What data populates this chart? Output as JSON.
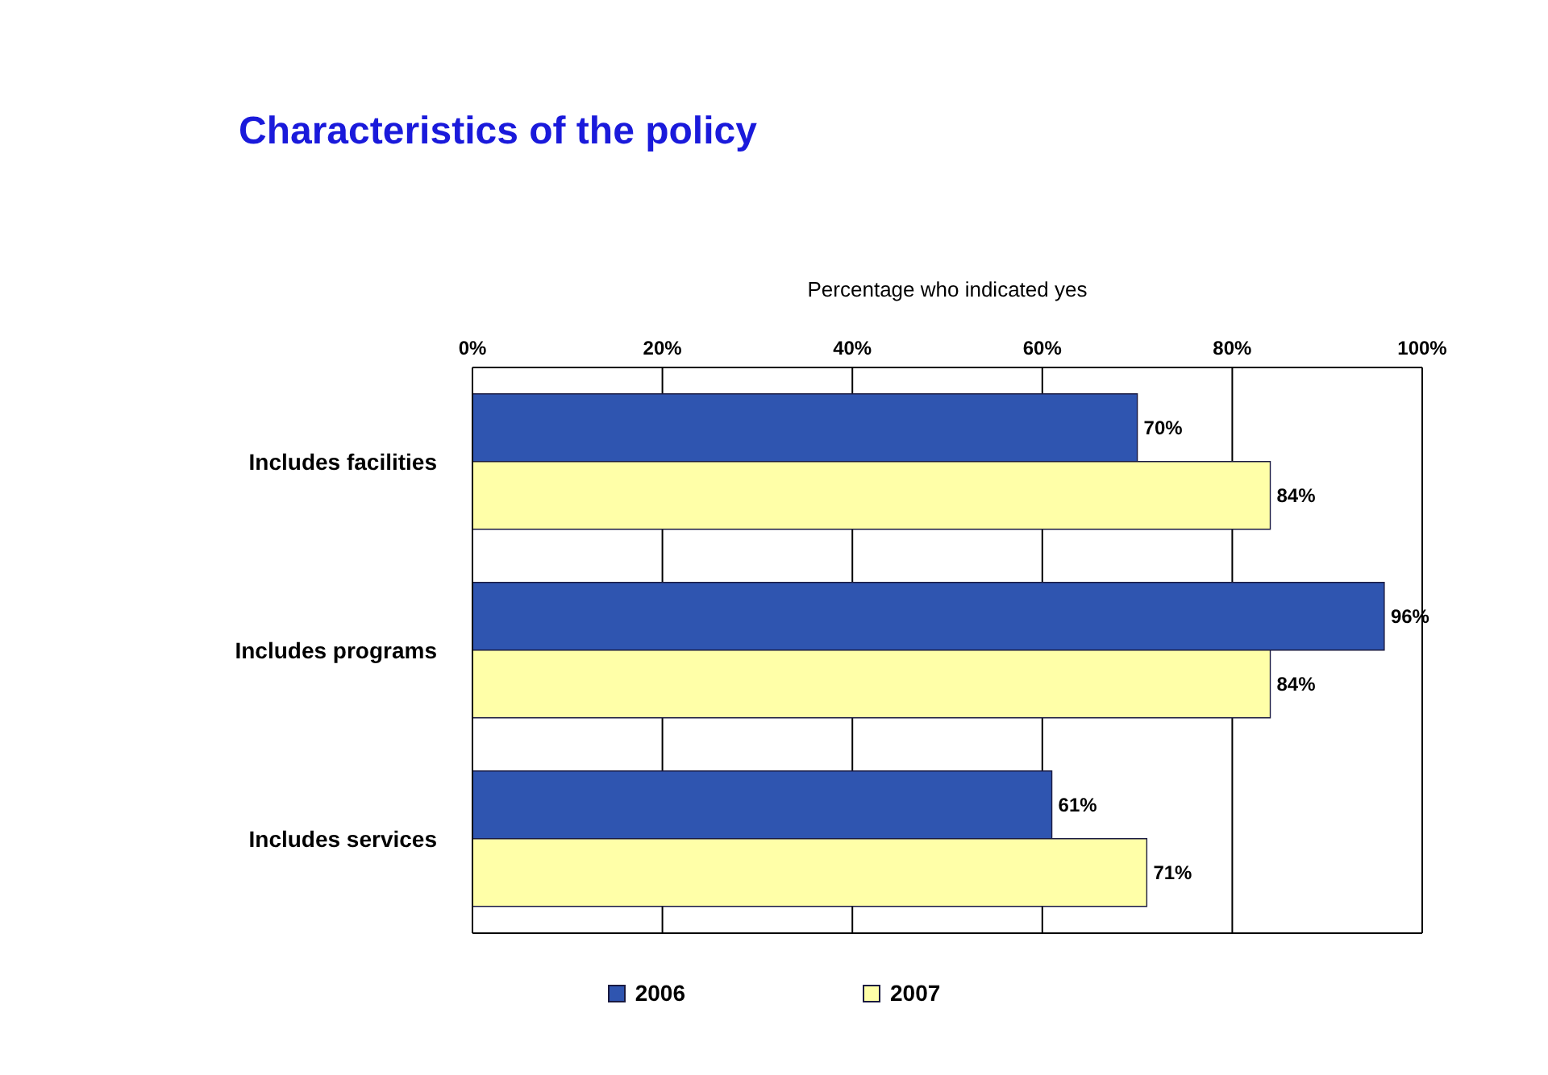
{
  "chart_data": {
    "type": "bar",
    "orientation": "horizontal",
    "title": "Characteristics of the policy",
    "xlabel": "Percentage who indicated yes",
    "categories": [
      "Includes facilities",
      "Includes programs",
      "Includes services"
    ],
    "series": [
      {
        "name": "2006",
        "color": "#2f55b0",
        "values": [
          70,
          96,
          61
        ],
        "value_labels": [
          "70%",
          "96%",
          "61%"
        ]
      },
      {
        "name": "2007",
        "color": "#ffffa8",
        "values": [
          84,
          84,
          71
        ],
        "value_labels": [
          "84%",
          "84%",
          "71%"
        ]
      }
    ],
    "xlim": [
      0,
      100
    ],
    "xticks": [
      {
        "value": 0,
        "label": "0%"
      },
      {
        "value": 20,
        "label": "20%"
      },
      {
        "value": 40,
        "label": "40%"
      },
      {
        "value": 60,
        "label": "60%"
      },
      {
        "value": 80,
        "label": "80%"
      },
      {
        "value": 100,
        "label": "100%"
      }
    ],
    "grid": "x",
    "legend": "bottom"
  }
}
